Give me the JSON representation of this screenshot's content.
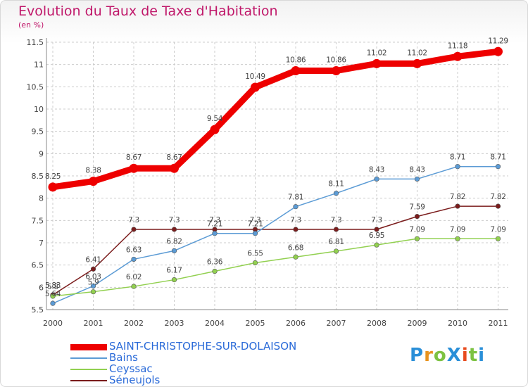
{
  "title": "Evolution du Taux de Taxe d'Habitation",
  "subtitle": "(en %)",
  "logo": {
    "text": "ProXiti",
    "colors": [
      "#2a8fd8",
      "#e8931f",
      "#7cc242",
      "#2a8fd8",
      "#e84c1f",
      "#7cc242",
      "#2a8fd8"
    ]
  },
  "colors": {
    "title": "#c0186a",
    "axis": "#888888",
    "grid": "#cccccc",
    "label": "#444444"
  },
  "chart_data": {
    "type": "line",
    "categories": [
      "2000",
      "2001",
      "2002",
      "2003",
      "2004",
      "2005",
      "2006",
      "2007",
      "2008",
      "2009",
      "2010",
      "2011"
    ],
    "ylim": [
      5.5,
      11.5
    ],
    "yticks": [
      "5.5",
      "6",
      "6.5",
      "7",
      "7.5",
      "8",
      "8.5",
      "9",
      "9.5",
      "10",
      "10.5",
      "11",
      "11.5"
    ],
    "grid": true,
    "legend": "bottom-left",
    "series": [
      {
        "name": "SAINT-CHRISTOPHE-SUR-DOLAISON",
        "color": "#ee0000",
        "values": [
          8.25,
          8.38,
          8.67,
          8.67,
          9.54,
          10.49,
          10.86,
          10.86,
          11.02,
          11.02,
          11.18,
          11.29
        ],
        "labels": [
          "8.25",
          "8.38",
          "8.67",
          "8.67",
          "9.54",
          "10.49",
          "10.86",
          "10.86",
          "11.02",
          "11.02",
          "11.18",
          "11.29"
        ]
      },
      {
        "name": "Bains",
        "color": "#5b9bd5",
        "values": [
          5.64,
          6.03,
          6.63,
          6.82,
          7.21,
          7.21,
          7.81,
          8.11,
          8.43,
          8.43,
          8.71,
          8.71
        ],
        "labels": [
          "5.64",
          "6.03",
          "6.63",
          "6.82",
          "7.21",
          "7.21",
          "7.81",
          "8.11",
          "8.43",
          "8.43",
          "8.71",
          "8.71"
        ]
      },
      {
        "name": "Ceyssac",
        "color": "#92d050",
        "values": [
          5.8,
          5.9,
          6.02,
          6.17,
          6.36,
          6.55,
          6.68,
          6.81,
          6.95,
          7.09,
          7.09,
          7.09
        ],
        "labels": [
          "5.8",
          "5.9",
          "6.02",
          "6.17",
          "6.36",
          "6.55",
          "6.68",
          "6.81",
          "6.95",
          "7.09",
          "7.09",
          "7.09"
        ]
      },
      {
        "name": "Séneujols",
        "color": "#7b1c1c",
        "values": [
          5.83,
          6.41,
          7.3,
          7.3,
          7.3,
          7.3,
          7.3,
          7.3,
          7.3,
          7.59,
          7.82,
          7.82
        ],
        "labels": [
          "5.83",
          "6.41",
          "7.3",
          "7.3",
          "7.3",
          "7.3",
          "7.3",
          "7.3",
          "7.3",
          "7.59",
          "7.82",
          "7.82"
        ]
      }
    ]
  }
}
